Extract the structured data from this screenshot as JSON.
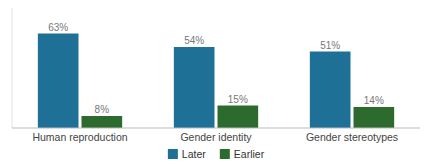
{
  "chart_data": {
    "type": "bar",
    "categories": [
      "Human reproduction",
      "Gender identity",
      "Gender stereotypes"
    ],
    "series": [
      {
        "name": "Later",
        "color": "#1e7096",
        "values": [
          63,
          54,
          51
        ],
        "value_labels": [
          "63%",
          "54%",
          "51%"
        ]
      },
      {
        "name": "Earlier",
        "color": "#2d6a2d",
        "values": [
          8,
          15,
          14
        ],
        "value_labels": [
          "8%",
          "15%",
          "14%"
        ]
      }
    ],
    "ylim": [
      0,
      80
    ],
    "data_labels": true,
    "tick_labels": "x",
    "grid": false,
    "legend": "bottom"
  }
}
